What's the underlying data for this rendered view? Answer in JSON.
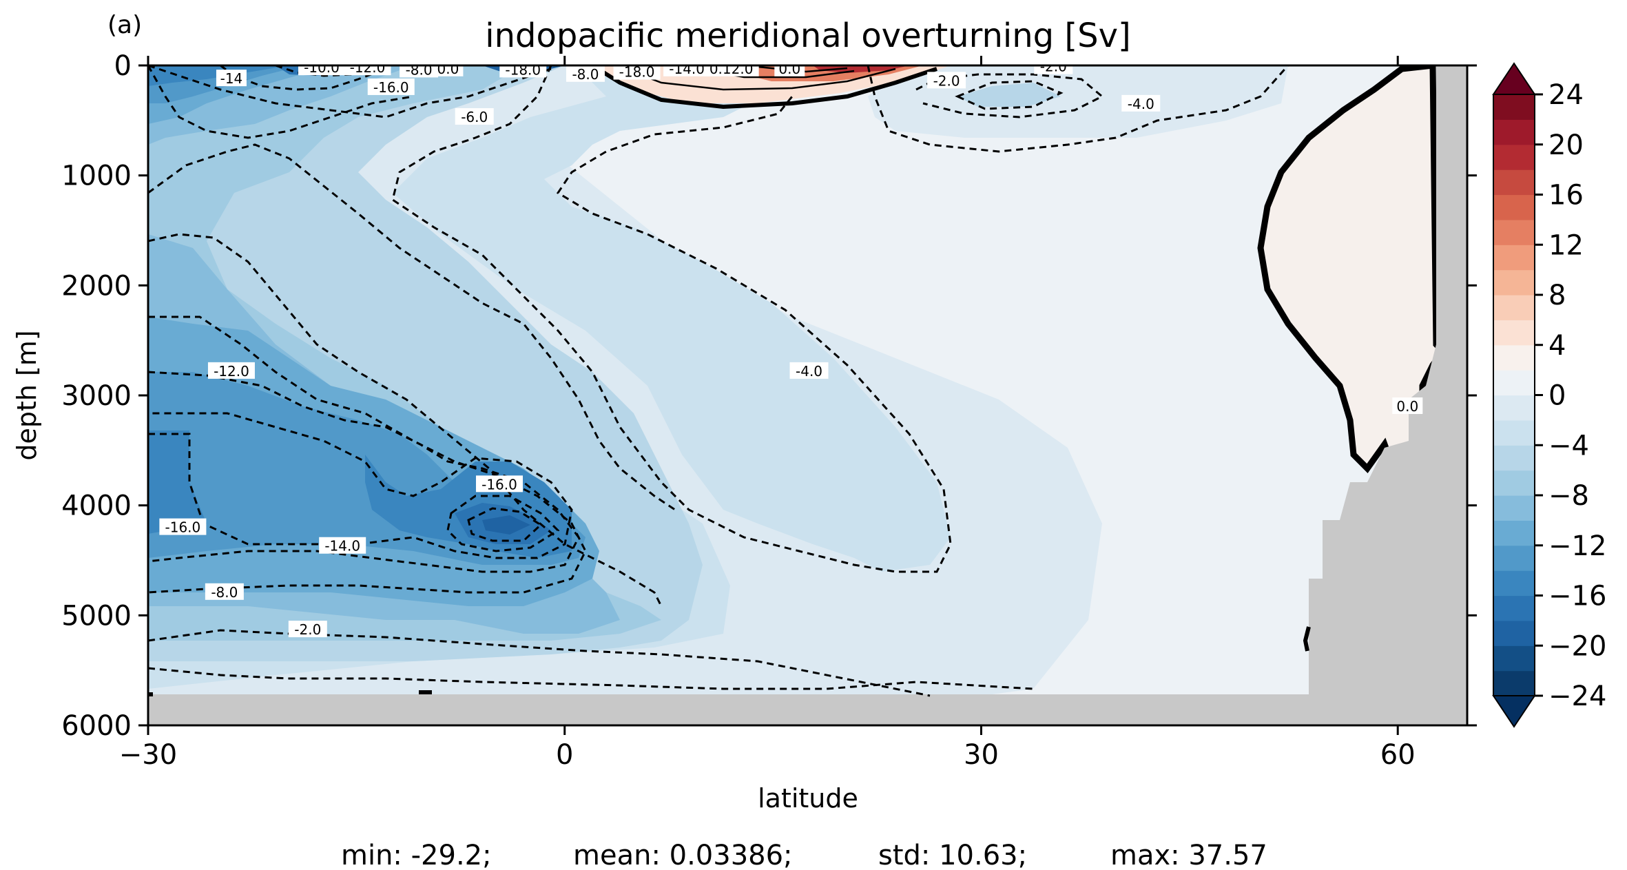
{
  "chart_data": {
    "type": "heatmap",
    "panel_label": "(a)",
    "title": "indopacific meridional overturning [Sv]",
    "xlabel": "latitude",
    "ylabel": "depth [m]",
    "xlim": [
      -30,
      65
    ],
    "ylim": [
      6000,
      0
    ],
    "xticks": [
      -30,
      0,
      30,
      60
    ],
    "xtick_labels": [
      "−30",
      "0",
      "30",
      "60"
    ],
    "yticks": [
      0,
      1000,
      2000,
      3000,
      4000,
      5000,
      6000
    ],
    "ytick_labels": [
      "0",
      "1000",
      "2000",
      "3000",
      "4000",
      "5000",
      "6000"
    ],
    "colorbar": {
      "cmap": "RdBu_r",
      "levels": [
        -24,
        -22,
        -20,
        -18,
        -16,
        -14,
        -12,
        -10,
        -8,
        -6,
        -4,
        -2,
        0,
        2,
        4,
        6,
        8,
        10,
        12,
        14,
        16,
        18,
        20,
        22,
        24
      ],
      "ticks": [
        24,
        20,
        16,
        12,
        8,
        4,
        0,
        -4,
        -8,
        -12,
        -16,
        -20,
        -24
      ],
      "tick_labels": [
        "24",
        "20",
        "16",
        "12",
        "8",
        "4",
        "0",
        "−4",
        "−8",
        "−12",
        "−16",
        "−20",
        "−24"
      ],
      "extend": "both",
      "colors": [
        "#0b3b6b",
        "#134f86",
        "#1f63a3",
        "#2b74b3",
        "#3a86bf",
        "#5199c9",
        "#69abd3",
        "#86bcdc",
        "#a0cbe2",
        "#b7d6e8",
        "#cbe1ee",
        "#dce9f2",
        "#edf2f6",
        "#f8f1ed",
        "#fbe1d4",
        "#f9cdb7",
        "#f5b596",
        "#f09c7c",
        "#e57f62",
        "#d8644c",
        "#c64a3f",
        "#b32b32",
        "#9e1a2b",
        "#7f0d20"
      ]
    },
    "contour_labels": [
      {
        "text": "-14",
        "x": -24.0,
        "y": 120
      },
      {
        "text": "-10.0",
        "x": -17.5,
        "y": 20
      },
      {
        "text": "-12.0",
        "x": -14.2,
        "y": 20
      },
      {
        "text": "-8.0",
        "x": -10.5,
        "y": 40
      },
      {
        "text": "0.0",
        "x": -8.4,
        "y": 30
      },
      {
        "text": "-16.0",
        "x": -12.5,
        "y": 200
      },
      {
        "text": "-18.0",
        "x": -3.0,
        "y": 40
      },
      {
        "text": "-6.0",
        "x": -6.5,
        "y": 470
      },
      {
        "text": "-8.0",
        "x": 1.5,
        "y": 80
      },
      {
        "text": "-18.0",
        "x": 5.2,
        "y": 60
      },
      {
        "text": "-14.0",
        "x": 8.8,
        "y": 30
      },
      {
        "text": "0.12.0",
        "x": 12.0,
        "y": 30
      },
      {
        "text": "0.0",
        "x": 16.2,
        "y": 30
      },
      {
        "text": "-2.0",
        "x": 27.5,
        "y": 140
      },
      {
        "text": "-2.0",
        "x": 35.2,
        "y": 10
      },
      {
        "text": "-4.0",
        "x": 41.5,
        "y": 350
      },
      {
        "text": "-4.0",
        "x": 17.6,
        "y": 2780
      },
      {
        "text": "-12.0",
        "x": -24.0,
        "y": 2780
      },
      {
        "text": "-16.0",
        "x": -4.7,
        "y": 3810
      },
      {
        "text": "-16.0",
        "x": -27.5,
        "y": 4200
      },
      {
        "text": "-14.0",
        "x": -16.0,
        "y": 4370
      },
      {
        "text": "-8.0",
        "x": -24.5,
        "y": 4790
      },
      {
        "text": "-2.0",
        "x": -18.5,
        "y": 5130
      },
      {
        "text": "0.0",
        "x": 60.7,
        "y": 3100
      }
    ],
    "stats": {
      "min_label": "min: -29.2;",
      "mean_label": "mean: 0.03386;",
      "std_label": "std: 10.63;",
      "max_label": "max: 37.57"
    }
  }
}
